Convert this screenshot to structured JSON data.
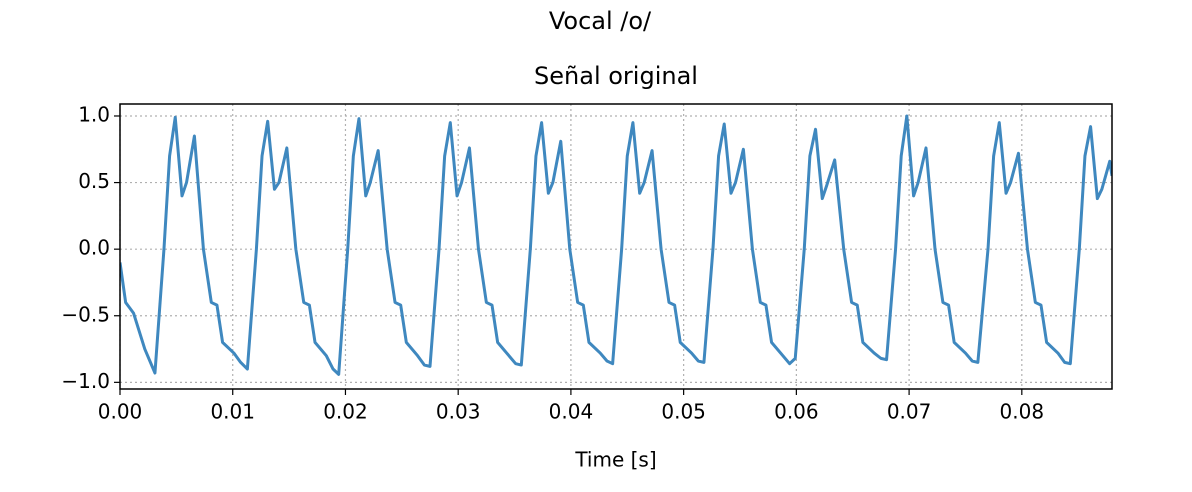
{
  "chart_data": {
    "type": "line",
    "suptitle": "Vocal /o/",
    "title": "Señal original",
    "xlabel": "Time [s]",
    "x": [
      0,
      0.0005,
      0.0012,
      0.0022,
      0.0031,
      0.0039,
      0.0044,
      0.0049,
      0.0055,
      0.0059,
      0.0066,
      0.0074,
      0.0081,
      0.0086,
      0.0091,
      0.0101,
      0.0107,
      0.0113,
      0.0121,
      0.0126,
      0.0131,
      0.0137,
      0.0141,
      0.0148,
      0.0156,
      0.0163,
      0.0168,
      0.0173,
      0.0183,
      0.0189,
      0.0194,
      0.0202,
      0.0207,
      0.0212,
      0.0218,
      0.0222,
      0.0229,
      0.0237,
      0.0244,
      0.0249,
      0.0254,
      0.0264,
      0.027,
      0.0275,
      0.0283,
      0.0288,
      0.0293,
      0.0299,
      0.0303,
      0.031,
      0.0318,
      0.0325,
      0.033,
      0.0335,
      0.0345,
      0.0351,
      0.0356,
      0.0364,
      0.0369,
      0.0374,
      0.038,
      0.0384,
      0.0391,
      0.0399,
      0.0406,
      0.0411,
      0.0416,
      0.0426,
      0.0432,
      0.0437,
      0.0445,
      0.045,
      0.0455,
      0.0461,
      0.0465,
      0.0472,
      0.048,
      0.0487,
      0.0492,
      0.0497,
      0.0507,
      0.0513,
      0.0518,
      0.0526,
      0.0531,
      0.0536,
      0.0542,
      0.0546,
      0.0553,
      0.0561,
      0.0568,
      0.0573,
      0.0578,
      0.0588,
      0.0594,
      0.0599,
      0.0607,
      0.0612,
      0.0617,
      0.0623,
      0.0627,
      0.0634,
      0.0642,
      0.0649,
      0.0654,
      0.0659,
      0.0669,
      0.0675,
      0.068,
      0.0688,
      0.0693,
      0.0698,
      0.0704,
      0.0708,
      0.0715,
      0.0723,
      0.073,
      0.0735,
      0.074,
      0.075,
      0.0756,
      0.0761,
      0.077,
      0.0775,
      0.078,
      0.0786,
      0.079,
      0.0797,
      0.0805,
      0.0812,
      0.0817,
      0.0822,
      0.0832,
      0.0838,
      0.0843,
      0.0851,
      0.0856,
      0.0861,
      0.0867,
      0.0871,
      0.0878,
      0.088
    ],
    "series": [
      {
        "color": "#3f88bf",
        "values": [
          -0.1,
          -0.4,
          -0.48,
          -0.75,
          -0.93,
          0.0,
          0.7,
          0.99,
          0.4,
          0.5,
          0.85,
          0.0,
          -0.4,
          -0.42,
          -0.7,
          -0.78,
          -0.85,
          -0.9,
          0.0,
          0.7,
          0.96,
          0.45,
          0.5,
          0.76,
          0.0,
          -0.4,
          -0.42,
          -0.7,
          -0.8,
          -0.9,
          -0.94,
          0.0,
          0.7,
          0.98,
          0.4,
          0.5,
          0.74,
          0.0,
          -0.4,
          -0.42,
          -0.7,
          -0.8,
          -0.87,
          -0.88,
          0.0,
          0.7,
          0.95,
          0.4,
          0.5,
          0.76,
          0.0,
          -0.4,
          -0.42,
          -0.7,
          -0.8,
          -0.86,
          -0.87,
          0.0,
          0.7,
          0.95,
          0.42,
          0.5,
          0.81,
          0.0,
          -0.4,
          -0.42,
          -0.7,
          -0.78,
          -0.84,
          -0.86,
          0.0,
          0.7,
          0.95,
          0.42,
          0.5,
          0.74,
          0.0,
          -0.4,
          -0.42,
          -0.7,
          -0.78,
          -0.84,
          -0.85,
          0.0,
          0.7,
          0.94,
          0.42,
          0.5,
          0.75,
          0.0,
          -0.4,
          -0.42,
          -0.7,
          -0.8,
          -0.86,
          -0.82,
          0.0,
          0.7,
          0.9,
          0.38,
          0.48,
          0.67,
          0.0,
          -0.4,
          -0.42,
          -0.7,
          -0.78,
          -0.82,
          -0.83,
          0.0,
          0.7,
          1.0,
          0.4,
          0.5,
          0.76,
          0.0,
          -0.4,
          -0.42,
          -0.7,
          -0.78,
          -0.84,
          -0.85,
          0.0,
          0.7,
          0.95,
          0.42,
          0.5,
          0.72,
          0.0,
          -0.4,
          -0.42,
          -0.7,
          -0.78,
          -0.85,
          -0.86,
          0.0,
          0.7,
          0.92,
          0.38,
          0.45,
          0.66,
          0.55
        ]
      }
    ],
    "xlim": [
      0,
      0.088
    ],
    "ylim": [
      -1.05,
      1.09
    ],
    "xticks": [
      {
        "value": 0,
        "label": "0.00"
      },
      {
        "value": 0.01,
        "label": "0.01"
      },
      {
        "value": 0.02,
        "label": "0.02"
      },
      {
        "value": 0.03,
        "label": "0.03"
      },
      {
        "value": 0.04,
        "label": "0.04"
      },
      {
        "value": 0.05,
        "label": "0.05"
      },
      {
        "value": 0.06,
        "label": "0.06"
      },
      {
        "value": 0.07,
        "label": "0.07"
      },
      {
        "value": 0.08,
        "label": "0.08"
      }
    ],
    "yticks": [
      {
        "value": -1,
        "label": "−1.0"
      },
      {
        "value": -0.5,
        "label": "−0.5"
      },
      {
        "value": 0,
        "label": "0.0"
      },
      {
        "value": 0.5,
        "label": "0.5"
      },
      {
        "value": 1,
        "label": "1.0"
      }
    ],
    "grid": true
  }
}
